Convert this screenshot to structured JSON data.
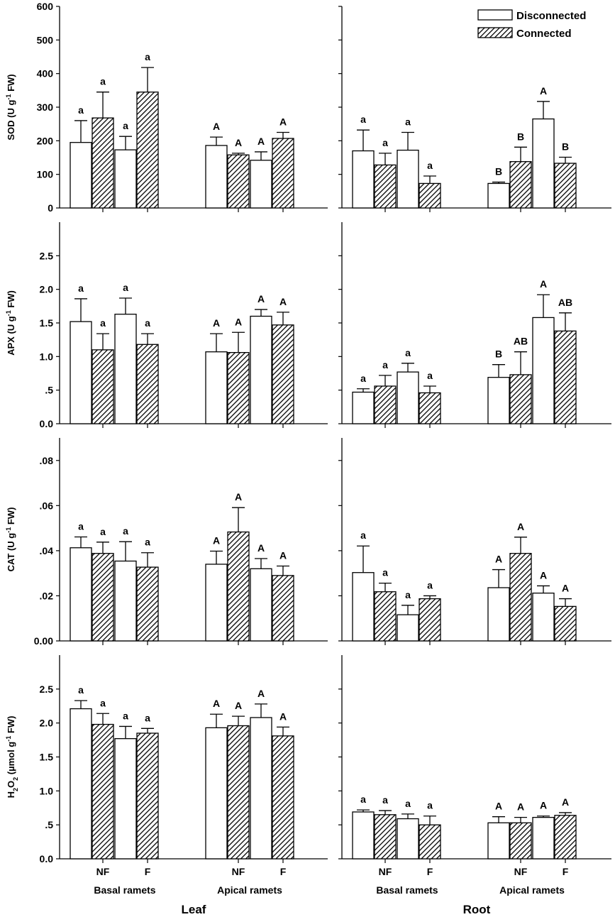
{
  "legend": {
    "position": "top-right",
    "items": [
      {
        "label": "Disconnected",
        "pattern": "open"
      },
      {
        "label": "Connected",
        "pattern": "hatched"
      }
    ]
  },
  "labels": {
    "leaf": "Leaf",
    "root": "Root",
    "basal": "Basal ramets",
    "apical": "Apical ramets",
    "nf": "NF",
    "f": "F"
  },
  "chart_data": [
    {
      "type": "bar",
      "panel": "SOD-Leaf",
      "ylabel_html": "SOD (U g<tspan baseline-shift='super' font-size='9'>-1</tspan> FW)",
      "ylim": [
        0,
        600
      ],
      "yticks": [
        {
          "v": 0,
          "label": "0"
        },
        {
          "v": 100,
          "label": "100"
        },
        {
          "v": 200,
          "label": "200"
        },
        {
          "v": 300,
          "label": "300"
        },
        {
          "v": 400,
          "label": "400"
        },
        {
          "v": 500,
          "label": "500"
        },
        {
          "v": 600,
          "label": "600"
        }
      ],
      "bars": [
        {
          "group": "Basal ramets",
          "treatment": "NF",
          "series": "Disconnected",
          "value": 195,
          "err": 65,
          "letter": "a"
        },
        {
          "group": "Basal ramets",
          "treatment": "NF",
          "series": "Connected",
          "value": 268,
          "err": 77,
          "letter": "a"
        },
        {
          "group": "Basal ramets",
          "treatment": "F",
          "series": "Disconnected",
          "value": 173,
          "err": 40,
          "letter": "a"
        },
        {
          "group": "Basal ramets",
          "treatment": "F",
          "series": "Connected",
          "value": 345,
          "err": 73,
          "letter": "a"
        },
        {
          "group": "Apical ramets",
          "treatment": "NF",
          "series": "Disconnected",
          "value": 186,
          "err": 25,
          "letter": "A"
        },
        {
          "group": "Apical ramets",
          "treatment": "NF",
          "series": "Connected",
          "value": 158,
          "err": 5,
          "letter": "A"
        },
        {
          "group": "Apical ramets",
          "treatment": "F",
          "series": "Disconnected",
          "value": 142,
          "err": 25,
          "letter": "A"
        },
        {
          "group": "Apical ramets",
          "treatment": "F",
          "series": "Connected",
          "value": 207,
          "err": 18,
          "letter": "A"
        }
      ]
    },
    {
      "type": "bar",
      "panel": "SOD-Root",
      "ylim": [
        0,
        600
      ],
      "bars": [
        {
          "group": "Basal ramets",
          "treatment": "NF",
          "series": "Disconnected",
          "value": 170,
          "err": 62,
          "letter": "a"
        },
        {
          "group": "Basal ramets",
          "treatment": "NF",
          "series": "Connected",
          "value": 128,
          "err": 35,
          "letter": "a"
        },
        {
          "group": "Basal ramets",
          "treatment": "F",
          "series": "Disconnected",
          "value": 172,
          "err": 53,
          "letter": "a"
        },
        {
          "group": "Basal ramets",
          "treatment": "F",
          "series": "Connected",
          "value": 73,
          "err": 22,
          "letter": "a"
        },
        {
          "group": "Apical ramets",
          "treatment": "NF",
          "series": "Disconnected",
          "value": 73,
          "err": 4,
          "letter": "B"
        },
        {
          "group": "Apical ramets",
          "treatment": "NF",
          "series": "Connected",
          "value": 138,
          "err": 43,
          "letter": "B"
        },
        {
          "group": "Apical ramets",
          "treatment": "F",
          "series": "Disconnected",
          "value": 265,
          "err": 52,
          "letter": "A"
        },
        {
          "group": "Apical ramets",
          "treatment": "F",
          "series": "Connected",
          "value": 133,
          "err": 18,
          "letter": "B"
        }
      ]
    },
    {
      "type": "bar",
      "panel": "APX-Leaf",
      "ylabel_html": "APX (U g<tspan baseline-shift='super' font-size='9'>-1</tspan> FW)",
      "ylim": [
        0,
        3.0
      ],
      "yticks": [
        {
          "v": 0,
          "label": "0.0"
        },
        {
          "v": 0.5,
          "label": ".5"
        },
        {
          "v": 1.0,
          "label": "1.0"
        },
        {
          "v": 1.5,
          "label": "1.5"
        },
        {
          "v": 2.0,
          "label": "2.0"
        },
        {
          "v": 2.5,
          "label": "2.5"
        }
      ],
      "bars": [
        {
          "group": "Basal ramets",
          "treatment": "NF",
          "series": "Disconnected",
          "value": 1.52,
          "err": 0.34,
          "letter": "a"
        },
        {
          "group": "Basal ramets",
          "treatment": "NF",
          "series": "Connected",
          "value": 1.1,
          "err": 0.24,
          "letter": "a"
        },
        {
          "group": "Basal ramets",
          "treatment": "F",
          "series": "Disconnected",
          "value": 1.63,
          "err": 0.24,
          "letter": "a"
        },
        {
          "group": "Basal ramets",
          "treatment": "F",
          "series": "Connected",
          "value": 1.18,
          "err": 0.16,
          "letter": "a"
        },
        {
          "group": "Apical ramets",
          "treatment": "NF",
          "series": "Disconnected",
          "value": 1.07,
          "err": 0.27,
          "letter": "A"
        },
        {
          "group": "Apical ramets",
          "treatment": "NF",
          "series": "Connected",
          "value": 1.06,
          "err": 0.3,
          "letter": "A"
        },
        {
          "group": "Apical ramets",
          "treatment": "F",
          "series": "Disconnected",
          "value": 1.6,
          "err": 0.1,
          "letter": "A"
        },
        {
          "group": "Apical ramets",
          "treatment": "F",
          "series": "Connected",
          "value": 1.47,
          "err": 0.19,
          "letter": "A"
        }
      ]
    },
    {
      "type": "bar",
      "panel": "APX-Root",
      "ylim": [
        0,
        3.0
      ],
      "bars": [
        {
          "group": "Basal ramets",
          "treatment": "NF",
          "series": "Disconnected",
          "value": 0.47,
          "err": 0.05,
          "letter": "a"
        },
        {
          "group": "Basal ramets",
          "treatment": "NF",
          "series": "Connected",
          "value": 0.56,
          "err": 0.16,
          "letter": "a"
        },
        {
          "group": "Basal ramets",
          "treatment": "F",
          "series": "Disconnected",
          "value": 0.77,
          "err": 0.13,
          "letter": "a"
        },
        {
          "group": "Basal ramets",
          "treatment": "F",
          "series": "Connected",
          "value": 0.46,
          "err": 0.1,
          "letter": "a"
        },
        {
          "group": "Apical ramets",
          "treatment": "NF",
          "series": "Disconnected",
          "value": 0.69,
          "err": 0.19,
          "letter": "B"
        },
        {
          "group": "Apical ramets",
          "treatment": "NF",
          "series": "Connected",
          "value": 0.73,
          "err": 0.34,
          "letter": "AB"
        },
        {
          "group": "Apical ramets",
          "treatment": "F",
          "series": "Disconnected",
          "value": 1.58,
          "err": 0.34,
          "letter": "A"
        },
        {
          "group": "Apical ramets",
          "treatment": "F",
          "series": "Connected",
          "value": 1.38,
          "err": 0.27,
          "letter": "AB"
        }
      ]
    },
    {
      "type": "bar",
      "panel": "CAT-Leaf",
      "ylabel_html": "CAT (U g<tspan baseline-shift='super' font-size='9'>-1</tspan> FW)",
      "ylim": [
        0,
        0.09
      ],
      "yticks": [
        {
          "v": 0,
          "label": "0.00"
        },
        {
          "v": 0.02,
          "label": ".02"
        },
        {
          "v": 0.04,
          "label": ".04"
        },
        {
          "v": 0.06,
          "label": ".06"
        },
        {
          "v": 0.08,
          "label": ".08"
        }
      ],
      "bars": [
        {
          "group": "Basal ramets",
          "treatment": "NF",
          "series": "Disconnected",
          "value": 0.0413,
          "err": 0.0048,
          "letter": "a"
        },
        {
          "group": "Basal ramets",
          "treatment": "NF",
          "series": "Connected",
          "value": 0.0388,
          "err": 0.005,
          "letter": "a"
        },
        {
          "group": "Basal ramets",
          "treatment": "F",
          "series": "Disconnected",
          "value": 0.0354,
          "err": 0.0086,
          "letter": "a"
        },
        {
          "group": "Basal ramets",
          "treatment": "F",
          "series": "Connected",
          "value": 0.0327,
          "err": 0.0064,
          "letter": "a"
        },
        {
          "group": "Apical ramets",
          "treatment": "NF",
          "series": "Disconnected",
          "value": 0.034,
          "err": 0.0058,
          "letter": "A"
        },
        {
          "group": "Apical ramets",
          "treatment": "NF",
          "series": "Connected",
          "value": 0.0483,
          "err": 0.0108,
          "letter": "A"
        },
        {
          "group": "Apical ramets",
          "treatment": "F",
          "series": "Disconnected",
          "value": 0.032,
          "err": 0.0045,
          "letter": "A"
        },
        {
          "group": "Apical ramets",
          "treatment": "F",
          "series": "Connected",
          "value": 0.029,
          "err": 0.0042,
          "letter": "A"
        }
      ]
    },
    {
      "type": "bar",
      "panel": "CAT-Root",
      "ylim": [
        0,
        0.09
      ],
      "bars": [
        {
          "group": "Basal ramets",
          "treatment": "NF",
          "series": "Disconnected",
          "value": 0.0303,
          "err": 0.0118,
          "letter": "a"
        },
        {
          "group": "Basal ramets",
          "treatment": "NF",
          "series": "Connected",
          "value": 0.0218,
          "err": 0.0038,
          "letter": "a"
        },
        {
          "group": "Basal ramets",
          "treatment": "F",
          "series": "Disconnected",
          "value": 0.0116,
          "err": 0.0042,
          "letter": "a"
        },
        {
          "group": "Basal ramets",
          "treatment": "F",
          "series": "Connected",
          "value": 0.0187,
          "err": 0.0013,
          "letter": "a"
        },
        {
          "group": "Apical ramets",
          "treatment": "NF",
          "series": "Disconnected",
          "value": 0.0236,
          "err": 0.008,
          "letter": "A"
        },
        {
          "group": "Apical ramets",
          "treatment": "NF",
          "series": "Connected",
          "value": 0.0388,
          "err": 0.0072,
          "letter": "A"
        },
        {
          "group": "Apical ramets",
          "treatment": "F",
          "series": "Disconnected",
          "value": 0.0212,
          "err": 0.0032,
          "letter": "A"
        },
        {
          "group": "Apical ramets",
          "treatment": "F",
          "series": "Connected",
          "value": 0.0153,
          "err": 0.0034,
          "letter": "A"
        }
      ]
    },
    {
      "type": "bar",
      "panel": "H2O2-Leaf",
      "ylabel_html": "H<tspan baseline-shift='sub' font-size='9'>2</tspan>O<tspan baseline-shift='sub' font-size='9'>2</tspan> (µmol g<tspan baseline-shift='super' font-size='9'>-1</tspan> FW)",
      "ylim": [
        0,
        3.0
      ],
      "yticks": [
        {
          "v": 0,
          "label": "0.0"
        },
        {
          "v": 0.5,
          "label": ".5"
        },
        {
          "v": 1.0,
          "label": "1.0"
        },
        {
          "v": 1.5,
          "label": "1.5"
        },
        {
          "v": 2.0,
          "label": "2.0"
        },
        {
          "v": 2.5,
          "label": "2.5"
        }
      ],
      "bars": [
        {
          "group": "Basal ramets",
          "treatment": "NF",
          "series": "Disconnected",
          "value": 2.21,
          "err": 0.12,
          "letter": "a"
        },
        {
          "group": "Basal ramets",
          "treatment": "NF",
          "series": "Connected",
          "value": 1.98,
          "err": 0.16,
          "letter": "a"
        },
        {
          "group": "Basal ramets",
          "treatment": "F",
          "series": "Disconnected",
          "value": 1.77,
          "err": 0.18,
          "letter": "a"
        },
        {
          "group": "Basal ramets",
          "treatment": "F",
          "series": "Connected",
          "value": 1.85,
          "err": 0.07,
          "letter": "a"
        },
        {
          "group": "Apical ramets",
          "treatment": "NF",
          "series": "Disconnected",
          "value": 1.93,
          "err": 0.2,
          "letter": "A"
        },
        {
          "group": "Apical ramets",
          "treatment": "NF",
          "series": "Connected",
          "value": 1.96,
          "err": 0.14,
          "letter": "A"
        },
        {
          "group": "Apical ramets",
          "treatment": "F",
          "series": "Disconnected",
          "value": 2.08,
          "err": 0.2,
          "letter": "A"
        },
        {
          "group": "Apical ramets",
          "treatment": "F",
          "series": "Connected",
          "value": 1.81,
          "err": 0.13,
          "letter": "A"
        }
      ]
    },
    {
      "type": "bar",
      "panel": "H2O2-Root",
      "ylim": [
        0,
        3.0
      ],
      "bars": [
        {
          "group": "Basal ramets",
          "treatment": "NF",
          "series": "Disconnected",
          "value": 0.69,
          "err": 0.03,
          "letter": "a"
        },
        {
          "group": "Basal ramets",
          "treatment": "NF",
          "series": "Connected",
          "value": 0.65,
          "err": 0.06,
          "letter": "a"
        },
        {
          "group": "Basal ramets",
          "treatment": "F",
          "series": "Disconnected",
          "value": 0.59,
          "err": 0.07,
          "letter": "a"
        },
        {
          "group": "Basal ramets",
          "treatment": "F",
          "series": "Connected",
          "value": 0.5,
          "err": 0.13,
          "letter": "a"
        },
        {
          "group": "Apical ramets",
          "treatment": "NF",
          "series": "Disconnected",
          "value": 0.53,
          "err": 0.09,
          "letter": "A"
        },
        {
          "group": "Apical ramets",
          "treatment": "NF",
          "series": "Connected",
          "value": 0.53,
          "err": 0.08,
          "letter": "A"
        },
        {
          "group": "Apical ramets",
          "treatment": "F",
          "series": "Disconnected",
          "value": 0.61,
          "err": 0.02,
          "letter": "A"
        },
        {
          "group": "Apical ramets",
          "treatment": "F",
          "series": "Connected",
          "value": 0.64,
          "err": 0.04,
          "letter": "A"
        }
      ]
    }
  ]
}
